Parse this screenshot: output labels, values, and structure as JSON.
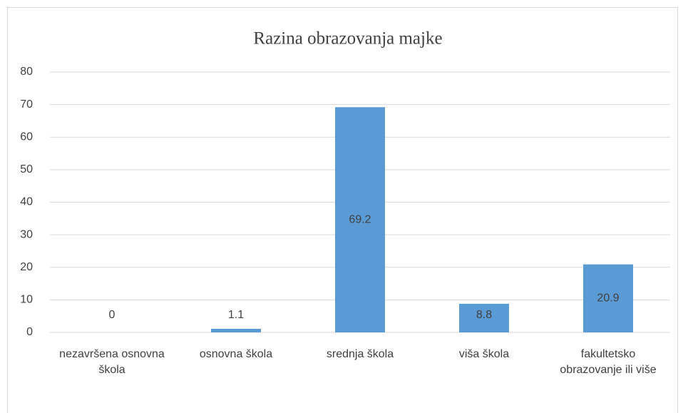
{
  "chart_data": {
    "type": "bar",
    "title": "Razina obrazovanja majke",
    "categories": [
      "nezavršena osnovna škola",
      "osnovna škola",
      "srednja škola",
      "viša škola",
      "fakultetsko obrazovanje ili više"
    ],
    "values": [
      0,
      1.1,
      69.2,
      8.8,
      20.9
    ],
    "color": "#5b9bd5",
    "ylim": [
      0,
      80
    ],
    "yticks": [
      0,
      10,
      20,
      30,
      40,
      50,
      60,
      70,
      80
    ],
    "grid": true
  }
}
